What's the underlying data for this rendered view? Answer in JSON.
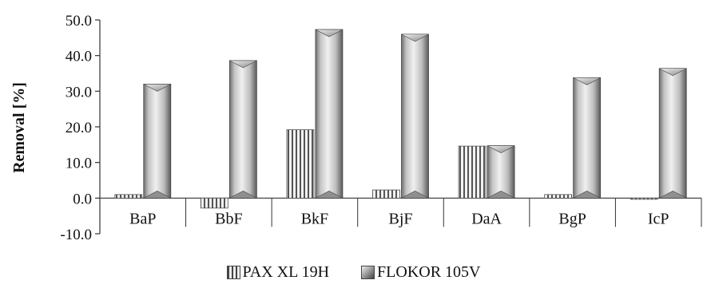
{
  "chart_data": {
    "type": "bar",
    "ylabel": "Removal [%]",
    "categories": [
      "BaP",
      "BbF",
      "BkF",
      "BjF",
      "DaA",
      "BgP",
      "IcP"
    ],
    "ylim": [
      -10,
      50
    ],
    "yticks": [
      "-10.0",
      "0.0",
      "10.0",
      "20.0",
      "30.0",
      "40.0",
      "50.0"
    ],
    "series": [
      {
        "name": "PAX XL 19H",
        "values": [
          1.0,
          -2.8,
          19.2,
          2.3,
          14.6,
          1.0,
          -0.2
        ]
      },
      {
        "name": "FLOKOR 105V",
        "values": [
          32.0,
          38.6,
          47.3,
          46.0,
          14.7,
          33.8,
          36.4
        ]
      }
    ],
    "legend_position": "bottom"
  }
}
